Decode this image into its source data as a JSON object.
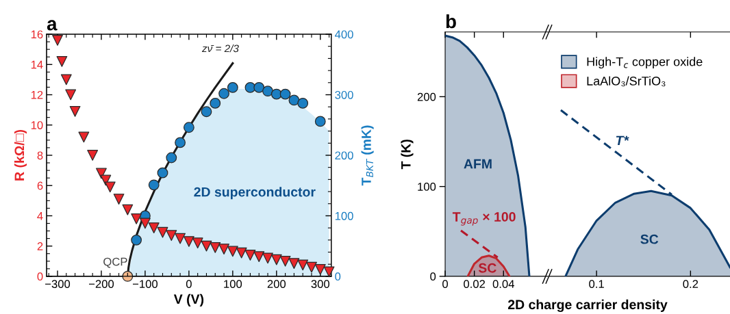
{
  "chart_data": [
    {
      "type": "scatter",
      "title": "a",
      "xlabel": "V (V)",
      "ylabel": "R (kΩ/□)",
      "y2label": "T$_{BKT}$ (mK)",
      "legend": false,
      "xlim": [
        -325,
        325
      ],
      "xticks": [
        {
          "value": -320,
          "label": null
        },
        {
          "value": -300,
          "label": "−300"
        },
        {
          "value": -280,
          "label": null
        },
        {
          "value": -260,
          "label": null
        },
        {
          "value": -240,
          "label": null
        },
        {
          "value": -220,
          "label": null
        },
        {
          "value": -200,
          "label": "−200"
        },
        {
          "value": -180,
          "label": null
        },
        {
          "value": -160,
          "label": null
        },
        {
          "value": -140,
          "label": null
        },
        {
          "value": -120,
          "label": null
        },
        {
          "value": -100,
          "label": "−100"
        },
        {
          "value": -80,
          "label": null
        },
        {
          "value": -60,
          "label": null
        },
        {
          "value": -40,
          "label": null
        },
        {
          "value": -20,
          "label": null
        },
        0,
        {
          "value": 20,
          "label": null
        },
        {
          "value": 40,
          "label": null
        },
        {
          "value": 60,
          "label": null
        },
        {
          "value": 80,
          "label": null
        },
        100,
        {
          "value": 120,
          "label": null
        },
        {
          "value": 140,
          "label": null
        },
        {
          "value": 160,
          "label": null
        },
        {
          "value": 180,
          "label": null
        },
        200,
        {
          "value": 220,
          "label": null
        },
        {
          "value": 240,
          "label": null
        },
        {
          "value": 260,
          "label": null
        },
        {
          "value": 280,
          "label": null
        },
        300,
        {
          "value": 320,
          "label": null
        }
      ],
      "ylim": [
        0,
        16
      ],
      "yticks": [
        0,
        {
          "value": 0.5,
          "label": null
        },
        {
          "value": 1,
          "label": null
        },
        {
          "value": 1.5,
          "label": null
        },
        2,
        {
          "value": 2.5,
          "label": null
        },
        {
          "value": 3,
          "label": null
        },
        {
          "value": 3.5,
          "label": null
        },
        4,
        {
          "value": 4.5,
          "label": null
        },
        {
          "value": 5,
          "label": null
        },
        {
          "value": 5.5,
          "label": null
        },
        6,
        {
          "value": 6.5,
          "label": null
        },
        {
          "value": 7,
          "label": null
        },
        {
          "value": 7.5,
          "label": null
        },
        8,
        {
          "value": 8.5,
          "label": null
        },
        {
          "value": 9,
          "label": null
        },
        {
          "value": 9.5,
          "label": null
        },
        10,
        {
          "value": 10.5,
          "label": null
        },
        {
          "value": 11,
          "label": null
        },
        {
          "value": 11.5,
          "label": null
        },
        12,
        {
          "value": 12.5,
          "label": null
        },
        {
          "value": 13,
          "label": null
        },
        {
          "value": 13.5,
          "label": null
        },
        14,
        {
          "value": 14.5,
          "label": null
        },
        {
          "value": 15,
          "label": null
        },
        {
          "value": 15.5,
          "label": null
        },
        16
      ],
      "y2lim": [
        0,
        400
      ],
      "y2ticks": [
        0,
        {
          "value": 20,
          "label": null
        },
        {
          "value": 40,
          "label": null
        },
        {
          "value": 60,
          "label": null
        },
        {
          "value": 80,
          "label": null
        },
        100,
        {
          "value": 120,
          "label": null
        },
        {
          "value": 140,
          "label": null
        },
        {
          "value": 160,
          "label": null
        },
        {
          "value": 180,
          "label": null
        },
        200,
        {
          "value": 220,
          "label": null
        },
        {
          "value": 240,
          "label": null
        },
        {
          "value": 260,
          "label": null
        },
        {
          "value": 280,
          "label": null
        },
        300,
        {
          "value": 320,
          "label": null
        },
        {
          "value": 340,
          "label": null
        },
        {
          "value": 360,
          "label": null
        },
        {
          "value": 380,
          "label": null
        },
        400
      ],
      "series": [
        {
          "type": "area",
          "axis": "y2",
          "color": "#d5ecf8",
          "x": [
            -140,
            -120,
            -100,
            -80,
            -60,
            -40,
            -20,
            0,
            20,
            40,
            60,
            80,
            100,
            120,
            140,
            160,
            180,
            200,
            220,
            240,
            260,
            280,
            300,
            320
          ],
          "values": [
            0,
            67,
            107,
            140,
            170,
            197,
            222,
            246,
            266,
            282,
            294,
            303,
            308,
            310,
            309,
            307,
            304,
            300,
            295,
            288,
            280,
            268,
            255,
            240
          ]
        },
        {
          "type": "line",
          "axis": "y2",
          "color": "#1a1a1a",
          "line_style": "solid",
          "x": [
            -140,
            -138,
            -135,
            -130,
            -120,
            -100,
            -80,
            -60,
            -40,
            -20,
            0,
            20,
            40,
            60,
            80,
            100
          ],
          "values": [
            0,
            14,
            27,
            42,
            67,
            107,
            140,
            170,
            197,
            222,
            246,
            269,
            291,
            312,
            332,
            352
          ]
        },
        {
          "axis": "y2",
          "color": "#1b7ec2",
          "marker": "circle",
          "x": [
            -120,
            -100,
            -80,
            -60,
            -40,
            -20,
            0,
            40,
            60,
            80,
            100,
            140,
            160,
            180,
            200,
            220,
            240,
            260,
            300
          ],
          "values": [
            60,
            100,
            151,
            171,
            196,
            221,
            246,
            272,
            286,
            302,
            312,
            312,
            312,
            306,
            301,
            301,
            291,
            286,
            256
          ]
        },
        {
          "color": "#e8262a",
          "marker": "triangle",
          "x": [
            -300,
            -290,
            -280,
            -270,
            -260,
            -240,
            -220,
            -200,
            -190,
            -180,
            -160,
            -140,
            -120,
            -100,
            -80,
            -60,
            -40,
            -20,
            0,
            20,
            40,
            60,
            80,
            100,
            120,
            140,
            160,
            180,
            200,
            220,
            240,
            260,
            280,
            300,
            320
          ],
          "values": [
            15.6,
            14.2,
            13.0,
            12.0,
            10.9,
            9.2,
            8.0,
            6.8,
            6.35,
            5.9,
            5.1,
            4.4,
            3.8,
            3.5,
            3.2,
            2.9,
            2.7,
            2.5,
            2.3,
            2.2,
            2.0,
            1.9,
            1.8,
            1.65,
            1.55,
            1.4,
            1.3,
            1.2,
            1.1,
            1.0,
            0.85,
            0.75,
            0.6,
            0.45,
            0.3
          ]
        },
        {
          "axis": "y2",
          "color": "#f6b98b",
          "marker": "circle",
          "x": [
            -140
          ],
          "values": [
            0
          ]
        }
      ],
      "annotations": [
        "QCP",
        "zν̄ = 2/3",
        "2D superconductor"
      ]
    },
    {
      "type": "area",
      "title": "b",
      "xlabel": "2D charge carrier density",
      "ylabel": "T (K)",
      "legend": "top right",
      "xlim": [
        0,
        0.0704
      ],
      "xticks": [
        0,
        0.02,
        0.04
      ],
      "ylim": [
        0,
        272
      ],
      "yticks": [
        0,
        100,
        200
      ],
      "series": [
        {
          "name": "High-T$_{c}$ copper oxide",
          "color": "#0d3d6e",
          "line_style": "solid",
          "x": [
            0,
            0.005,
            0.01,
            0.015,
            0.02,
            0.025,
            0.03,
            0.035,
            0.04,
            0.045,
            0.05,
            0.055,
            0.0577
          ],
          "values": [
            268,
            266,
            262,
            255,
            246,
            235,
            221,
            204,
            182,
            152,
            112,
            55,
            0
          ]
        },
        {
          "name": "LaAlO₃/SrTiO₃",
          "color": "#c0272d",
          "line_style": "solid",
          "x": [
            0.0155,
            0.02,
            0.025,
            0.03,
            0.035,
            0.04,
            0.0441
          ],
          "values": [
            0,
            14,
            21,
            23,
            20,
            11,
            0
          ]
        },
        {
          "type": "line",
          "color": "#b5192a",
          "line_style": "dashed",
          "x": [
            0.0108,
            0.036
          ],
          "values": [
            51,
            21
          ]
        }
      ],
      "annotations": [
        "AFM",
        "SC",
        "T$_{gap}$ × 100"
      ]
    },
    {
      "type": "area",
      "tick_labels": "x",
      "xlim": [
        0.0496,
        0.242
      ],
      "xticks": [
        0.1,
        0.2
      ],
      "ylim": [
        0,
        272
      ],
      "yticks": [
        0,
        100,
        200
      ],
      "series": [
        {
          "color": "#0d3d6e",
          "line_style": "solid",
          "x": [
            0.067,
            0.08,
            0.1,
            0.12,
            0.14,
            0.158,
            0.18,
            0.2,
            0.22,
            0.242
          ],
          "values": [
            0,
            30,
            62,
            82,
            92,
            95,
            90,
            76,
            52,
            10
          ]
        },
        {
          "type": "line",
          "color": "#0d3d6e",
          "line_style": "dashed",
          "x": [
            0.062,
            0.18
          ],
          "values": [
            185,
            91
          ]
        }
      ],
      "annotations": [
        "SC",
        "T*"
      ]
    }
  ]
}
